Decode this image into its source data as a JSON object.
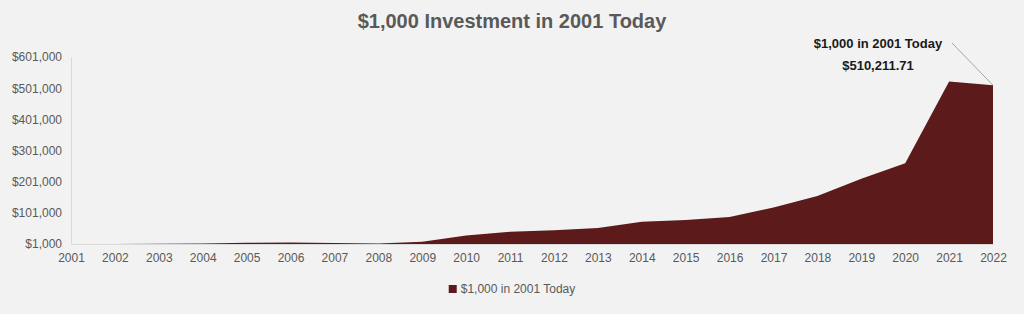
{
  "chart_data": {
    "type": "area",
    "title": "$1,000 Investment in 2001 Today",
    "x": [
      2001,
      2002,
      2003,
      2004,
      2005,
      2006,
      2007,
      2008,
      2009,
      2010,
      2011,
      2012,
      2013,
      2014,
      2015,
      2016,
      2017,
      2018,
      2019,
      2020,
      2021,
      2022
    ],
    "series": [
      {
        "name": "$1,000 in 2001 Today",
        "color": "#5c1a1b",
        "values": [
          1000,
          1100,
          1500,
          3000,
          5000,
          6000,
          4000,
          3000,
          8000,
          28000,
          40000,
          45000,
          52000,
          72000,
          78000,
          88000,
          118000,
          155000,
          210000,
          260000,
          522000,
          510211.71
        ]
      }
    ],
    "xlim": [
      2001,
      2022
    ],
    "xticks": [
      2001,
      2002,
      2003,
      2004,
      2005,
      2006,
      2007,
      2008,
      2009,
      2010,
      2011,
      2012,
      2013,
      2014,
      2015,
      2016,
      2017,
      2018,
      2019,
      2020,
      2021,
      2022
    ],
    "ylim": [
      1000,
      601000
    ],
    "yticks": [
      {
        "value": 1000,
        "label": "$1,000"
      },
      {
        "value": 101000,
        "label": "$101,000"
      },
      {
        "value": 201000,
        "label": "$201,000"
      },
      {
        "value": 301000,
        "label": "$301,000"
      },
      {
        "value": 401000,
        "label": "$401,000"
      },
      {
        "value": 501000,
        "label": "$501,000"
      },
      {
        "value": 601000,
        "label": "$601,000"
      }
    ],
    "annotations": [
      {
        "x": 2022,
        "y": 510211.71,
        "lines": [
          "$1,000 in 2001 Today",
          "$510,211.71"
        ]
      }
    ],
    "grid": false,
    "legend": "bottom"
  }
}
